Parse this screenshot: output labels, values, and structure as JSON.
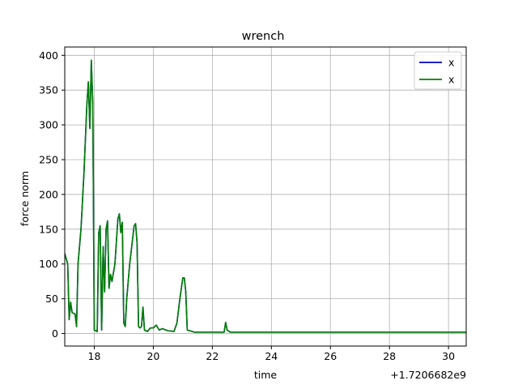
{
  "chart_data": {
    "type": "line",
    "title": "wrench",
    "xlabel": "time",
    "ylabel": "force norm",
    "x_offset_label": "+1.7206682e9",
    "xlim": [
      17.0,
      30.6
    ],
    "ylim": [
      -18,
      412
    ],
    "x_ticks": [
      18,
      20,
      22,
      24,
      26,
      28,
      30
    ],
    "y_ticks": [
      0,
      50,
      100,
      150,
      200,
      250,
      300,
      350,
      400
    ],
    "grid": true,
    "legend_position": "top-right",
    "series": [
      {
        "name": "x",
        "color": "#0000cc",
        "points": [
          [
            17.0,
            115
          ],
          [
            17.1,
            100
          ],
          [
            17.15,
            20
          ],
          [
            17.2,
            45
          ],
          [
            17.25,
            30
          ],
          [
            17.35,
            28
          ],
          [
            17.4,
            10
          ],
          [
            17.45,
            100
          ],
          [
            17.55,
            150
          ],
          [
            17.65,
            230
          ],
          [
            17.75,
            330
          ],
          [
            17.8,
            362
          ],
          [
            17.85,
            295
          ],
          [
            17.9,
            393
          ],
          [
            17.95,
            330
          ],
          [
            18.0,
            5
          ],
          [
            18.1,
            3
          ],
          [
            18.15,
            145
          ],
          [
            18.2,
            155
          ],
          [
            18.25,
            5
          ],
          [
            18.3,
            125
          ],
          [
            18.35,
            60
          ],
          [
            18.4,
            150
          ],
          [
            18.45,
            162
          ],
          [
            18.5,
            65
          ],
          [
            18.55,
            85
          ],
          [
            18.6,
            75
          ],
          [
            18.7,
            100
          ],
          [
            18.8,
            165
          ],
          [
            18.85,
            172
          ],
          [
            18.9,
            145
          ],
          [
            18.95,
            160
          ],
          [
            19.0,
            15
          ],
          [
            19.05,
            10
          ],
          [
            19.1,
            50
          ],
          [
            19.2,
            100
          ],
          [
            19.35,
            155
          ],
          [
            19.4,
            158
          ],
          [
            19.45,
            130
          ],
          [
            19.5,
            10
          ],
          [
            19.55,
            8
          ],
          [
            19.6,
            10
          ],
          [
            19.65,
            38
          ],
          [
            19.7,
            5
          ],
          [
            19.8,
            3
          ],
          [
            19.9,
            8
          ],
          [
            20.0,
            8
          ],
          [
            20.1,
            12
          ],
          [
            20.2,
            5
          ],
          [
            20.3,
            7
          ],
          [
            20.5,
            4
          ],
          [
            20.7,
            3
          ],
          [
            20.8,
            15
          ],
          [
            20.9,
            50
          ],
          [
            21.0,
            80
          ],
          [
            21.05,
            80
          ],
          [
            21.1,
            60
          ],
          [
            21.15,
            5
          ],
          [
            21.4,
            2
          ],
          [
            22.0,
            2
          ],
          [
            22.4,
            2
          ],
          [
            22.45,
            16
          ],
          [
            22.5,
            5
          ],
          [
            22.6,
            2
          ],
          [
            23.0,
            2
          ],
          [
            25.0,
            2
          ],
          [
            27.0,
            2
          ],
          [
            29.0,
            2
          ],
          [
            30.6,
            2
          ]
        ]
      },
      {
        "name": "x",
        "color": "#007f00",
        "points": [
          [
            17.0,
            115
          ],
          [
            17.1,
            100
          ],
          [
            17.15,
            20
          ],
          [
            17.2,
            45
          ],
          [
            17.25,
            30
          ],
          [
            17.35,
            28
          ],
          [
            17.4,
            10
          ],
          [
            17.45,
            100
          ],
          [
            17.55,
            150
          ],
          [
            17.65,
            230
          ],
          [
            17.75,
            330
          ],
          [
            17.8,
            362
          ],
          [
            17.85,
            295
          ],
          [
            17.9,
            393
          ],
          [
            17.95,
            330
          ],
          [
            18.0,
            5
          ],
          [
            18.1,
            3
          ],
          [
            18.15,
            145
          ],
          [
            18.2,
            155
          ],
          [
            18.25,
            5
          ],
          [
            18.3,
            125
          ],
          [
            18.35,
            60
          ],
          [
            18.4,
            150
          ],
          [
            18.45,
            162
          ],
          [
            18.5,
            65
          ],
          [
            18.55,
            85
          ],
          [
            18.6,
            75
          ],
          [
            18.7,
            100
          ],
          [
            18.8,
            165
          ],
          [
            18.85,
            172
          ],
          [
            18.9,
            145
          ],
          [
            18.95,
            160
          ],
          [
            19.0,
            15
          ],
          [
            19.05,
            10
          ],
          [
            19.1,
            50
          ],
          [
            19.2,
            100
          ],
          [
            19.35,
            155
          ],
          [
            19.4,
            158
          ],
          [
            19.45,
            130
          ],
          [
            19.5,
            10
          ],
          [
            19.55,
            8
          ],
          [
            19.6,
            10
          ],
          [
            19.65,
            38
          ],
          [
            19.7,
            5
          ],
          [
            19.8,
            3
          ],
          [
            19.9,
            8
          ],
          [
            20.0,
            8
          ],
          [
            20.1,
            12
          ],
          [
            20.2,
            5
          ],
          [
            20.3,
            7
          ],
          [
            20.5,
            4
          ],
          [
            20.7,
            3
          ],
          [
            20.8,
            15
          ],
          [
            20.9,
            50
          ],
          [
            21.0,
            80
          ],
          [
            21.05,
            80
          ],
          [
            21.1,
            60
          ],
          [
            21.15,
            5
          ],
          [
            21.4,
            2
          ],
          [
            22.0,
            2
          ],
          [
            22.4,
            2
          ],
          [
            22.45,
            16
          ],
          [
            22.5,
            5
          ],
          [
            22.6,
            2
          ],
          [
            23.0,
            2
          ],
          [
            25.0,
            2
          ],
          [
            27.0,
            2
          ],
          [
            29.0,
            2
          ],
          [
            30.6,
            2
          ]
        ]
      }
    ]
  }
}
